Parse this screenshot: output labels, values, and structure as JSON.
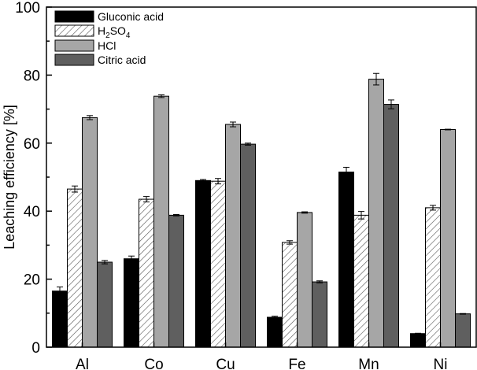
{
  "chart_data": {
    "type": "bar",
    "categories": [
      "Al",
      "Co",
      "Cu",
      "Fe",
      "Mn",
      "Ni"
    ],
    "ylabel": "Leaching efficiency [%]",
    "xlabel": "",
    "ylim": [
      0,
      100
    ],
    "yticks": [
      "0",
      "20",
      "40",
      "60",
      "80",
      "100"
    ],
    "legend_position": "top-left",
    "series": [
      {
        "name": "Gluconic acid",
        "color": "#000000",
        "pattern": "solid",
        "values": [
          16.5,
          26.0,
          49.0,
          8.8,
          51.5,
          4.0
        ],
        "errors": [
          1.2,
          0.8,
          0.3,
          0.3,
          1.4,
          0.1
        ]
      },
      {
        "name": "H2SO4",
        "color": "#ffffff",
        "pattern": "hatch",
        "values": [
          46.5,
          43.5,
          48.8,
          30.8,
          38.8,
          41.0
        ],
        "errors": [
          0.9,
          0.8,
          0.8,
          0.5,
          1.1,
          0.7
        ]
      },
      {
        "name": "HCl",
        "color": "#a6a6a6",
        "pattern": "solid",
        "values": [
          67.5,
          73.8,
          65.5,
          39.6,
          78.8,
          64.0
        ],
        "errors": [
          0.6,
          0.4,
          0.7,
          0.2,
          1.7,
          0.1
        ]
      },
      {
        "name": "Citric acid",
        "color": "#5f5f5f",
        "pattern": "solid",
        "values": [
          25.0,
          38.8,
          59.7,
          19.2,
          71.4,
          9.8
        ],
        "errors": [
          0.5,
          0.2,
          0.3,
          0.3,
          1.3,
          0.1
        ]
      }
    ]
  },
  "legend": {
    "items": [
      {
        "label": "Gluconic acid"
      },
      {
        "label_main": "H",
        "label_sub1": "2",
        "label_mid": "SO",
        "label_sub2": "4"
      },
      {
        "label": "HCl"
      },
      {
        "label": "Citric acid"
      }
    ]
  }
}
